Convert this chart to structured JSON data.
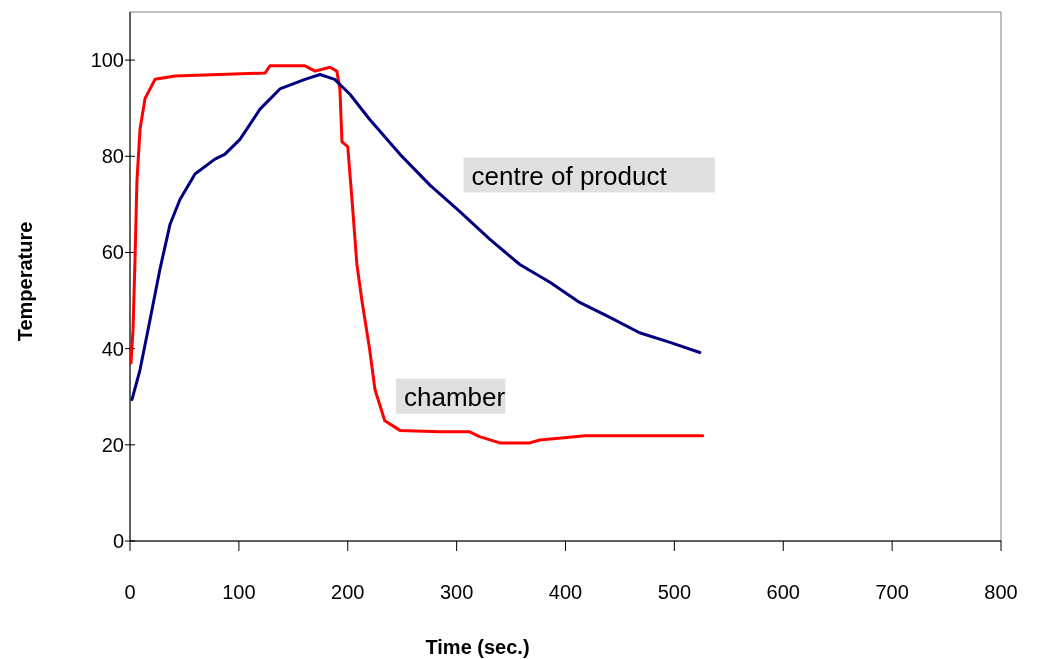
{
  "chart_data": {
    "type": "line",
    "xlabel": "Time  (sec.)",
    "ylabel": "Temperature",
    "xlim": [
      0,
      800
    ],
    "xticks": [
      0,
      100,
      200,
      300,
      400,
      500,
      600,
      700,
      800
    ],
    "ylim": [
      0,
      110
    ],
    "yticks": [
      0,
      20,
      40,
      60,
      80,
      100
    ],
    "grid": false,
    "legend": false,
    "marker": "none",
    "line_style": "solid",
    "series": [
      {
        "name": "chamber",
        "color": "#ff0000",
        "x": [
          0.9,
          2.8,
          4.6,
          6.4,
          9.2,
          13.8,
          23,
          41.3,
          124,
          128.6,
          160.7,
          170,
          183.7,
          190,
          192.8,
          194.7,
          200,
          203.9,
          208.4,
          213,
          220,
          225,
          234,
          248,
          284.7,
          312,
          321,
          339.8,
          367,
          376.5,
          418,
          526
        ],
        "values": [
          37,
          44,
          58.5,
          75,
          85.6,
          92,
          96,
          96.7,
          97.3,
          98.8,
          98.8,
          97.7,
          98.5,
          97.7,
          94,
          83,
          82,
          71,
          57.5,
          50,
          40,
          31.5,
          25,
          23,
          22.7,
          22.7,
          21.7,
          20.4,
          20.4,
          21,
          21.9,
          21.9
        ]
      },
      {
        "name": "centre of product",
        "color": "#000080",
        "x": [
          1.8,
          9.2,
          18.4,
          27.5,
          36.7,
          45.9,
          59.7,
          78,
          87,
          101,
          119.4,
          137.7,
          160.7,
          174.5,
          188,
          202,
          220,
          248,
          275.5,
          303,
          330.6,
          358,
          385.7,
          413,
          440.8,
          468,
          496,
          523.4
        ],
        "values": [
          29.4,
          35.6,
          46,
          56.5,
          65.8,
          71,
          76.3,
          79.4,
          80.4,
          83.5,
          89.8,
          94,
          96,
          97,
          96,
          92.9,
          87.7,
          80.4,
          74,
          68.5,
          62.7,
          57.5,
          53.8,
          49.6,
          46.5,
          43.3,
          41.3,
          39.2
        ]
      }
    ]
  }
}
